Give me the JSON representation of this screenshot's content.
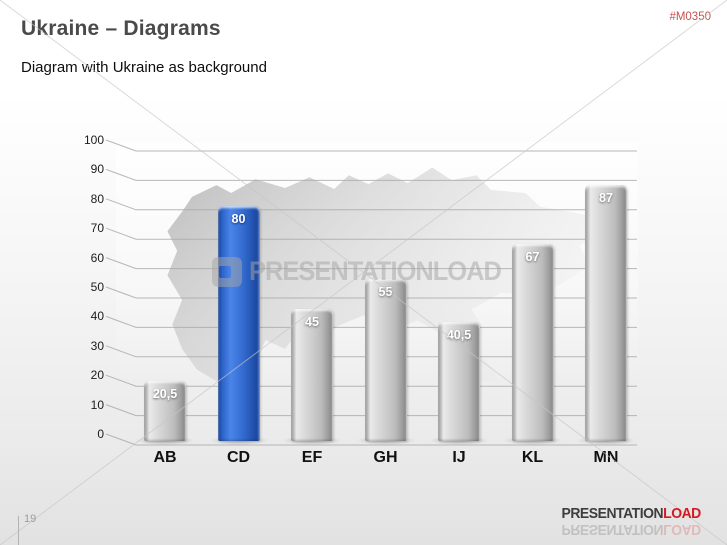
{
  "slide": {
    "title": "Ukraine – Diagrams",
    "subtitle": "Diagram with Ukraine as background",
    "product_code": "#M0350",
    "page_number": "19"
  },
  "watermark": {
    "text": "PRESENTATIONLOAD"
  },
  "footer_logo": {
    "part1": "PRESENTATION",
    "part2": "LOAD"
  },
  "chart_data": {
    "type": "bar",
    "categories": [
      "AB",
      "CD",
      "EF",
      "GH",
      "IJ",
      "KL",
      "MN"
    ],
    "values": [
      20.5,
      80,
      45,
      55,
      40.5,
      67,
      87
    ],
    "value_labels": [
      "20,5",
      "80",
      "45",
      "55",
      "40,5",
      "67",
      "87"
    ],
    "highlight_index": 1,
    "title": "",
    "xlabel": "",
    "ylabel": "",
    "ylim": [
      0,
      100
    ],
    "ytick_step": 10,
    "yticks": [
      "0",
      "10",
      "20",
      "30",
      "40",
      "50",
      "60",
      "70",
      "80",
      "90",
      "100"
    ],
    "grid": true,
    "legend": "none",
    "background": "ukraine-map-silhouette",
    "colors": {
      "bar_highlight": "#2f66cc",
      "bar_default": "#c6c6c6",
      "gridline": "#aaaaaa",
      "map_fill": "#c3c3c3",
      "accent_red": "#d61920"
    }
  }
}
